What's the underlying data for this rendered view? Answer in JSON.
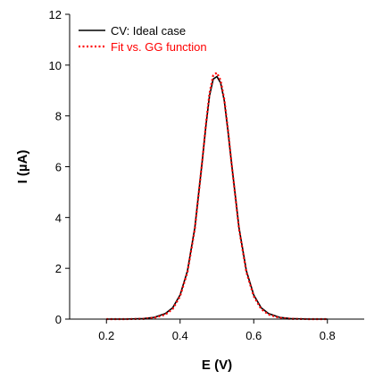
{
  "chart_data": {
    "type": "line",
    "title": "",
    "xlabel": "E (V)",
    "ylabel": "I (µA)",
    "xlim": [
      0.1,
      0.9
    ],
    "ylim": [
      0,
      12
    ],
    "xticks": [
      0.2,
      0.4,
      0.6,
      0.8
    ],
    "xtick_labels": [
      "0.2",
      "0.4",
      "0.6",
      "0.8"
    ],
    "yticks": [
      0,
      2,
      4,
      6,
      8,
      10,
      12
    ],
    "ytick_labels": [
      "0",
      "2",
      "4",
      "6",
      "8",
      "10",
      "12"
    ],
    "grid": false,
    "legend_position": "top-left",
    "series": [
      {
        "name": "CV: Ideal case",
        "color": "#000000",
        "style": "solid",
        "x": [
          0.2,
          0.25,
          0.3,
          0.33,
          0.36,
          0.38,
          0.4,
          0.42,
          0.44,
          0.46,
          0.47,
          0.48,
          0.49,
          0.5,
          0.51,
          0.52,
          0.53,
          0.54,
          0.56,
          0.58,
          0.6,
          0.62,
          0.64,
          0.67,
          0.7,
          0.75,
          0.8
        ],
        "y": [
          0.0,
          0.0,
          0.02,
          0.07,
          0.22,
          0.45,
          0.95,
          1.9,
          3.6,
          6.2,
          7.6,
          8.8,
          9.45,
          9.55,
          9.3,
          8.6,
          7.4,
          6.1,
          3.6,
          1.9,
          0.95,
          0.45,
          0.22,
          0.07,
          0.02,
          0.0,
          0.0
        ]
      },
      {
        "name": "Fit vs. GG function",
        "color": "#ff0000",
        "style": "dotted",
        "x": [
          0.2,
          0.25,
          0.3,
          0.33,
          0.36,
          0.38,
          0.4,
          0.42,
          0.44,
          0.46,
          0.47,
          0.48,
          0.49,
          0.5,
          0.51,
          0.52,
          0.53,
          0.54,
          0.56,
          0.58,
          0.6,
          0.62,
          0.64,
          0.67,
          0.7,
          0.75,
          0.8
        ],
        "y": [
          0.0,
          0.0,
          0.01,
          0.05,
          0.18,
          0.4,
          0.9,
          1.85,
          3.55,
          6.2,
          7.65,
          8.9,
          9.6,
          9.7,
          9.4,
          8.65,
          7.45,
          6.1,
          3.55,
          1.85,
          0.9,
          0.4,
          0.18,
          0.05,
          0.01,
          0.0,
          0.0
        ]
      }
    ]
  }
}
